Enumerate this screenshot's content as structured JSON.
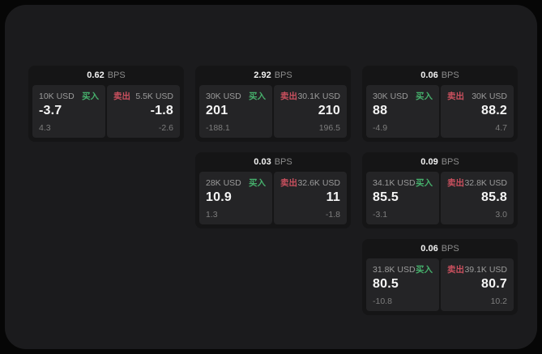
{
  "colors": {
    "outer_bg": "#060606",
    "container_bg": "#1b1b1d",
    "card_bg": "#151516",
    "panel_bg": "#242426",
    "buy": "#46b06c",
    "sell": "#c9505e",
    "value_text": "#f5f5f5",
    "label_text": "#9b9b9b",
    "sub_text": "#7d7d7d"
  },
  "labels": {
    "buy": "买入",
    "sell": "卖出",
    "spread_unit": "BPS"
  },
  "cards": [
    {
      "row": 1,
      "col": 1,
      "spread": "0.62",
      "unit": "BPS",
      "buy": {
        "amount": "10K USD",
        "side": "买入",
        "value": "-3.7",
        "sub": "4.3"
      },
      "sell": {
        "side": "卖出",
        "amount": "5.5K USD",
        "value": "-1.8",
        "sub": "-2.6"
      }
    },
    {
      "row": 1,
      "col": 2,
      "spread": "2.92",
      "unit": "BPS",
      "buy": {
        "amount": "30K USD",
        "side": "买入",
        "value": "201",
        "sub": "-188.1"
      },
      "sell": {
        "side": "卖出",
        "amount": "30.1K USD",
        "value": "210",
        "sub": "196.5"
      }
    },
    {
      "row": 1,
      "col": 3,
      "spread": "0.06",
      "unit": "BPS",
      "buy": {
        "amount": "30K USD",
        "side": "买入",
        "value": "88",
        "sub": "-4.9"
      },
      "sell": {
        "side": "卖出",
        "amount": "30K USD",
        "value": "88.2",
        "sub": "4.7"
      }
    },
    {
      "row": 2,
      "col": 2,
      "spread": "0.03",
      "unit": "BPS",
      "buy": {
        "amount": "28K USD",
        "side": "买入",
        "value": "10.9",
        "sub": "1.3"
      },
      "sell": {
        "side": "卖出",
        "amount": "32.6K USD",
        "value": "11",
        "sub": "-1.8"
      }
    },
    {
      "row": 2,
      "col": 3,
      "spread": "0.09",
      "unit": "BPS",
      "buy": {
        "amount": "34.1K USD",
        "side": "买入",
        "value": "85.5",
        "sub": "-3.1"
      },
      "sell": {
        "side": "卖出",
        "amount": "32.8K USD",
        "value": "85.8",
        "sub": "3.0"
      }
    },
    {
      "row": 3,
      "col": 3,
      "spread": "0.06",
      "unit": "BPS",
      "buy": {
        "amount": "31.8K USD",
        "side": "买入",
        "value": "80.5",
        "sub": "-10.8"
      },
      "sell": {
        "side": "卖出",
        "amount": "39.1K USD",
        "value": "80.7",
        "sub": "10.2"
      }
    }
  ]
}
